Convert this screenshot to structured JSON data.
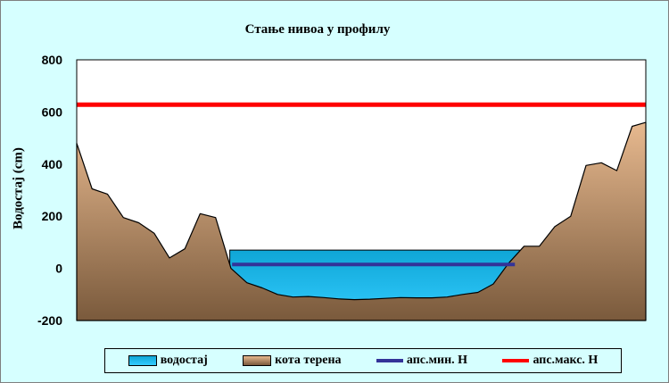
{
  "chart_data": {
    "type": "area",
    "title": "Стање нивоа у профилу",
    "ylabel": "Водостај (cm)",
    "xlabel": "",
    "ylim": [
      -200,
      800
    ],
    "xlim": [
      0,
      100
    ],
    "yticks": [
      "800",
      "600",
      "400",
      "200",
      "0",
      "-200"
    ],
    "terrain": {
      "name": "кота терена",
      "x": [
        0,
        2.7,
        5.4,
        8.2,
        10.9,
        13.6,
        16.3,
        19.0,
        21.7,
        24.4,
        27.1,
        29.9,
        32.6,
        35.3,
        38.0,
        40.7,
        43.4,
        46.1,
        48.8,
        51.5,
        54.2,
        56.9,
        59.7,
        62.4,
        65.1,
        67.8,
        70.5,
        73.2,
        75.9,
        78.6,
        81.3,
        84.0,
        86.8,
        89.5,
        92.2,
        94.9,
        97.6,
        100
      ],
      "y": [
        480,
        305,
        285,
        195,
        175,
        135,
        40,
        75,
        210,
        195,
        0,
        -55,
        -75,
        -100,
        -110,
        -108,
        -112,
        -117,
        -120,
        -118,
        -115,
        -112,
        -113,
        -113,
        -110,
        -100,
        -92,
        -60,
        20,
        85,
        85,
        160,
        200,
        395,
        405,
        375,
        545,
        560
      ]
    },
    "water": {
      "name": "водостај",
      "level": 70,
      "x_start": 26.9,
      "x_end": 77.8
    },
    "min_level": {
      "name": "апс.мин. H",
      "value": 15,
      "x_start": 27.3,
      "x_end": 77.0
    },
    "max_level": {
      "name": "апс.макс. H",
      "value": 628
    },
    "colors": {
      "plot_background": "#ffffff",
      "chart_background": "#d6ffff",
      "terrain_top": "#e7b98f",
      "terrain_bottom": "#7a5a3c",
      "water_top": "#0fa6d6",
      "water_bottom": "#33ccff",
      "min_line": "#333399",
      "max_line": "#ff0000"
    },
    "legend_position": "bottom"
  }
}
